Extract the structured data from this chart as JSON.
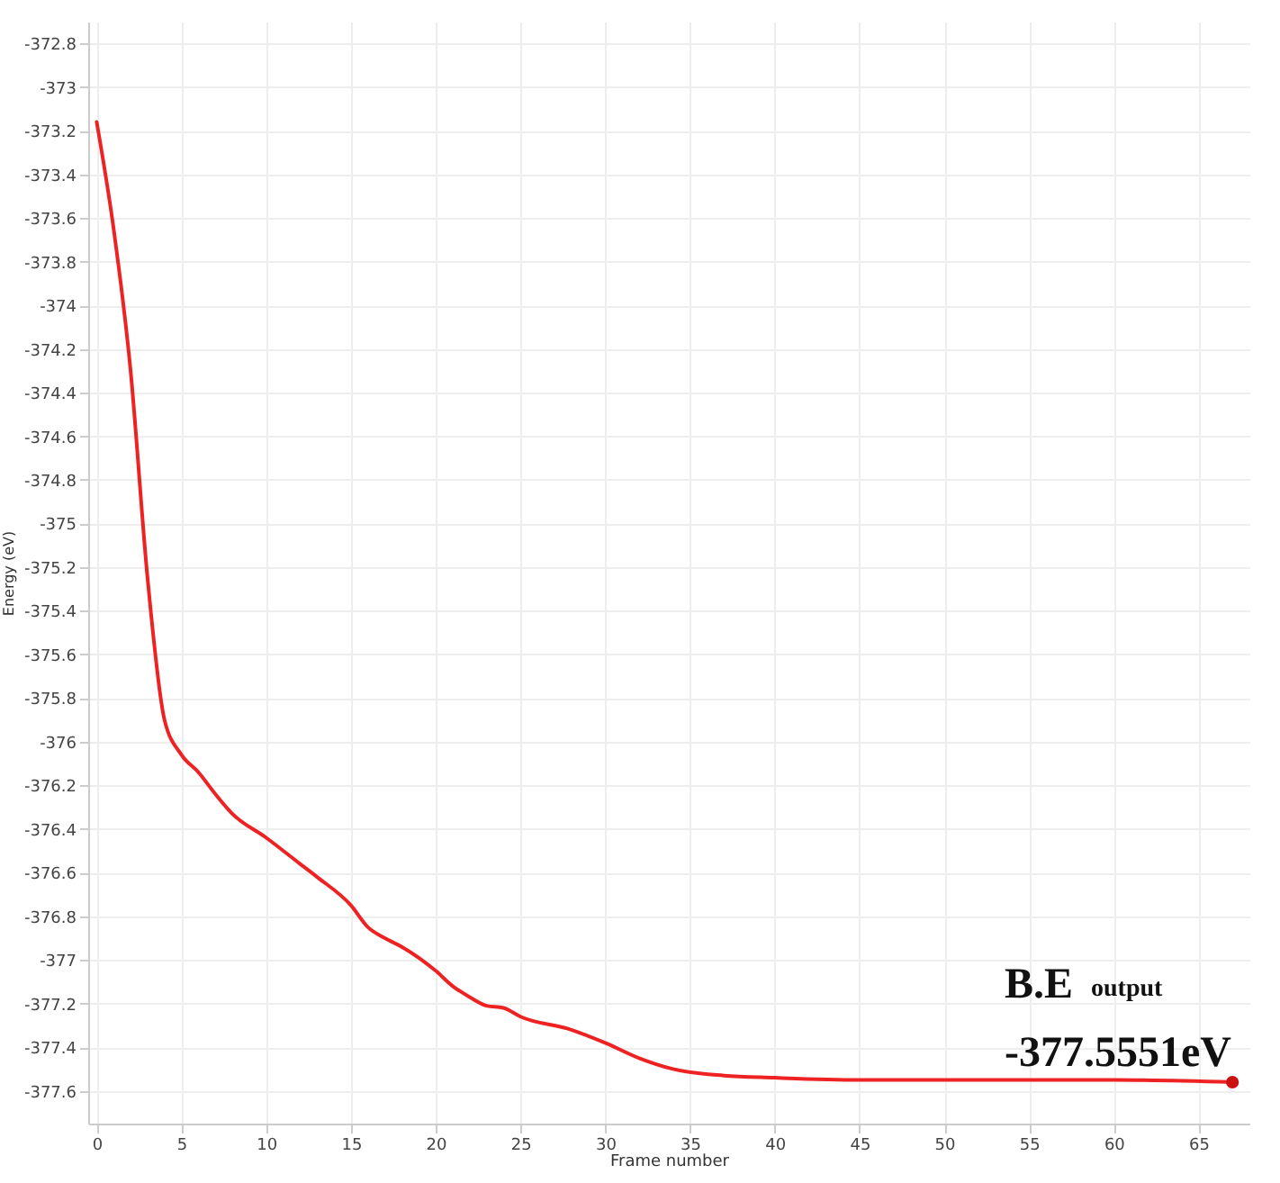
{
  "chart_data": {
    "type": "line",
    "xlabel": "Frame number",
    "ylabel": "Energy (eV)",
    "xlim": [
      -0.5,
      68
    ],
    "xticks": [
      0,
      5,
      10,
      15,
      20,
      25,
      30,
      35,
      40,
      45,
      50,
      55,
      60,
      65
    ],
    "ylim": [
      -377.75,
      -372.7
    ],
    "yticks": [
      -377.6,
      -377.4,
      -377.2,
      -377,
      -376.8,
      -376.6,
      -376.4,
      -376.2,
      -376,
      -375.8,
      -375.6,
      -375.4,
      -375.2,
      -375,
      -374.8,
      -374.6,
      -374.4,
      -374.2,
      -374,
      -373.8,
      -373.6,
      -373.4,
      -373.2,
      -373,
      -372.8
    ],
    "grid": true,
    "series": [
      {
        "color": "#ee2222",
        "marker": "none",
        "x": [
          0,
          1,
          2,
          3,
          4,
          5,
          6,
          7,
          8,
          10,
          12,
          13,
          15,
          16,
          17,
          18,
          20,
          21,
          22,
          23,
          24,
          25,
          28,
          30,
          32,
          34,
          37,
          40,
          45,
          50,
          55,
          60,
          67
        ],
        "values": [
          -373.16,
          -373.65,
          -374.3,
          -375.25,
          -375.9,
          -376.06,
          -376.14,
          -376.24,
          -376.33,
          -376.44,
          -376.56,
          -376.62,
          -376.75,
          -376.85,
          -376.9,
          -376.94,
          -377.05,
          -377.12,
          -377.17,
          -377.21,
          -377.22,
          -377.26,
          -377.32,
          -377.38,
          -377.45,
          -377.5,
          -377.53,
          -377.54,
          -377.55,
          -377.55,
          -377.55,
          -377.55,
          -377.56
        ]
      },
      {
        "type": "scatter",
        "color": "#cc1111",
        "marker": "circle",
        "x": [
          67
        ],
        "values": [
          -377.56
        ]
      }
    ],
    "annotations": [
      "B.E $_{output}$",
      "-377.5551eV"
    ]
  }
}
